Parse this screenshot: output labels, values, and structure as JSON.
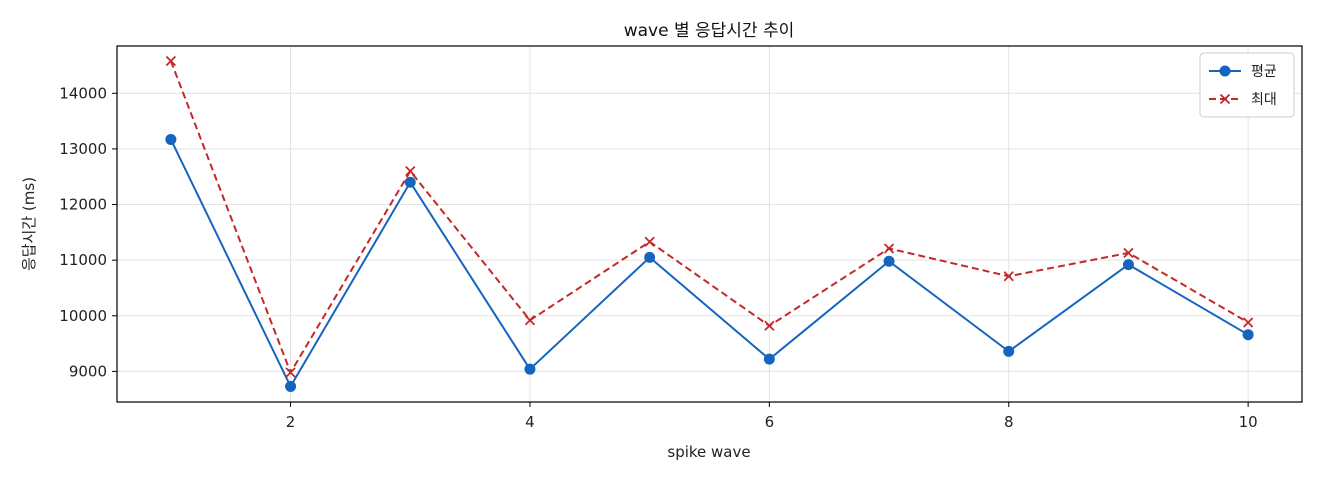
{
  "chart_data": {
    "type": "line",
    "title": "wave 별 응답시간 추이",
    "xlabel": "spike wave",
    "ylabel": "응답시간 (ms)",
    "x": [
      1,
      2,
      3,
      4,
      5,
      6,
      7,
      8,
      9,
      10
    ],
    "xlim": [
      0.55,
      10.45
    ],
    "ylim": [
      8450,
      14850
    ],
    "xticks": [
      2,
      4,
      6,
      8,
      10
    ],
    "yticks": [
      9000,
      10000,
      11000,
      12000,
      13000,
      14000
    ],
    "grid": true,
    "legend_position": "top-right",
    "series": [
      {
        "name": "평균",
        "values": [
          13170,
          8730,
          12400,
          9040,
          11050,
          9220,
          10980,
          9360,
          10920,
          9660
        ],
        "color": "#1565c0",
        "marker": "circle",
        "line_style": "solid"
      },
      {
        "name": "최대",
        "values": [
          14580,
          8980,
          12600,
          9920,
          11330,
          9820,
          11210,
          10710,
          11130,
          9880
        ],
        "color": "#c62828",
        "marker": "x",
        "line_style": "dashed"
      }
    ]
  }
}
